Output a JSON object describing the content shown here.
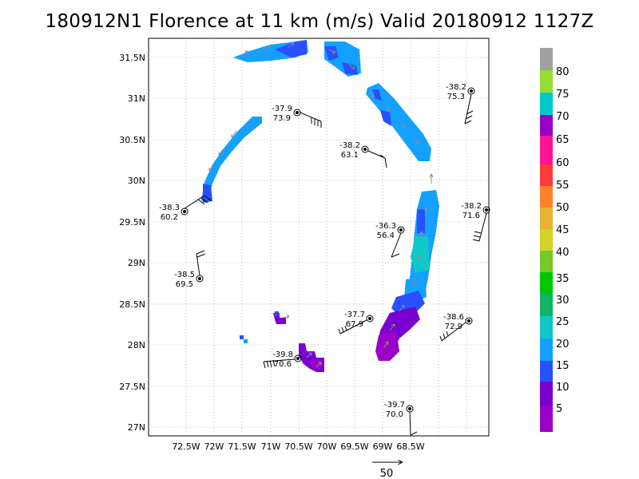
{
  "title": "180912N1 Florence at 11 km (m/s) Valid 20180912  1127Z",
  "axes": {
    "lon_labels": [
      "72.5W",
      "72W",
      "71.5W",
      "71W",
      "70.5W",
      "70W",
      "69.5W",
      "69W",
      "68.5W"
    ],
    "lat_labels": [
      "31.5N",
      "31N",
      "30.5N",
      "30N",
      "29.5N",
      "29N",
      "28.5N",
      "28N",
      "27.5N",
      "27N"
    ]
  },
  "colorbar": {
    "labels": [
      "5",
      "10",
      "15",
      "20",
      "25",
      "30",
      "35",
      "40",
      "45",
      "50",
      "55",
      "60",
      "65",
      "70",
      "75",
      "80"
    ],
    "colors": [
      "#9a00c8",
      "#7800d2",
      "#2850ff",
      "#14a0ff",
      "#10c8c8",
      "#10b464",
      "#00c800",
      "#78c828",
      "#d2d228",
      "#e6b432",
      "#ff8228",
      "#ff3c3c",
      "#ff1494",
      "#9600c8",
      "#00c8c8",
      "#96dc32",
      "#a0a0a0"
    ]
  },
  "reference_vector": {
    "label": "50"
  },
  "observations": [
    {
      "id": "obs-1",
      "temp": "-38.2",
      "value": "75.3"
    },
    {
      "id": "obs-2",
      "temp": "-37.9",
      "value": "73.9"
    },
    {
      "id": "obs-3",
      "temp": "-38.2",
      "value": "63.1"
    },
    {
      "id": "obs-4",
      "temp": "-38.3",
      "value": "60.2"
    },
    {
      "id": "obs-5",
      "temp": "-38.2",
      "value": "71.6"
    },
    {
      "id": "obs-6",
      "temp": "-36.3",
      "value": "56.4"
    },
    {
      "id": "obs-7",
      "temp": "-38.5",
      "value": "69.5"
    },
    {
      "id": "obs-8",
      "temp": "-37.7",
      "value": "67.9"
    },
    {
      "id": "obs-9",
      "temp": "-38.6",
      "value": "72.9"
    },
    {
      "id": "obs-10",
      "temp": "-39.8",
      "value": "70.6"
    },
    {
      "id": "obs-11",
      "temp": "-39.7",
      "value": "70.0"
    }
  ]
}
